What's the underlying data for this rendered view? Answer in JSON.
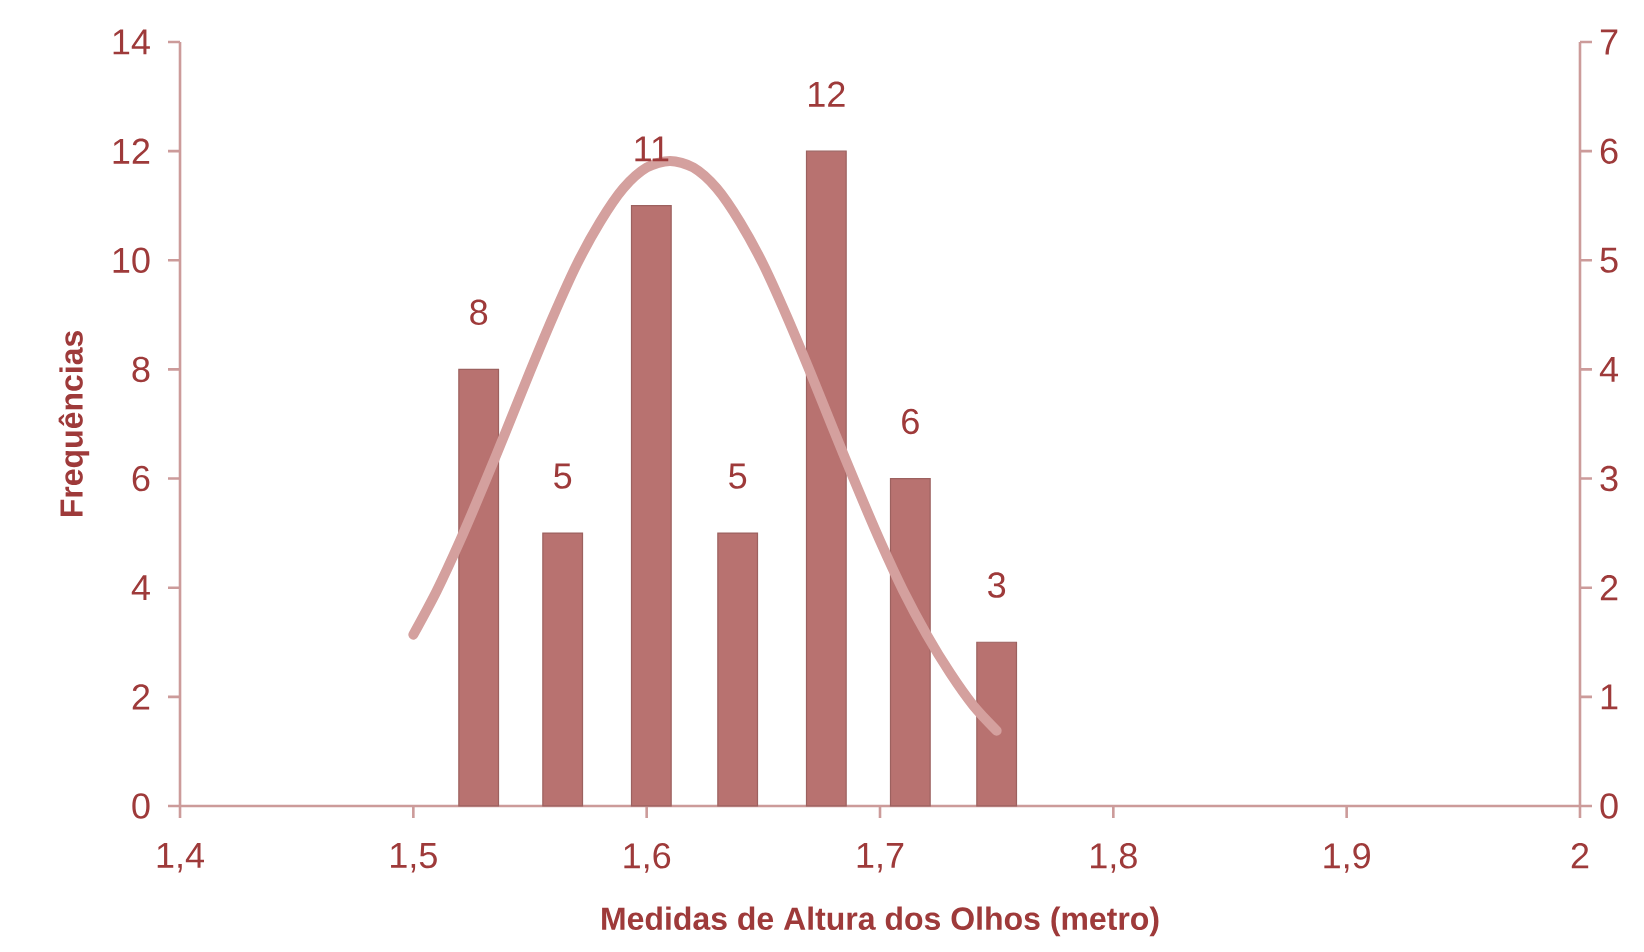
{
  "chart_data": {
    "type": "bar",
    "xlabel": "Medidas de Altura dos Olhos (metro)",
    "ylabel": "Frequências",
    "x": [
      1.528,
      1.564,
      1.602,
      1.639,
      1.677,
      1.713,
      1.75
    ],
    "series": [
      {
        "color": "#b87270",
        "values": [
          8,
          5,
          11,
          5,
          12,
          6,
          3
        ],
        "value_labels": [
          "8",
          "5",
          "11",
          "5",
          "12",
          "6",
          "3"
        ]
      },
      {
        "type": "line",
        "axis": "y2",
        "color": "#d4a09e",
        "x": [
          1.5,
          1.51,
          1.52,
          1.53,
          1.54,
          1.55,
          1.56,
          1.57,
          1.58,
          1.59,
          1.6,
          1.61,
          1.62,
          1.63,
          1.64,
          1.65,
          1.66,
          1.67,
          1.68,
          1.69,
          1.7,
          1.71,
          1.72,
          1.73,
          1.74,
          1.75
        ],
        "values": [
          1.57,
          1.97,
          2.43,
          2.93,
          3.45,
          3.98,
          4.49,
          4.96,
          5.35,
          5.66,
          5.85,
          5.91,
          5.85,
          5.66,
          5.35,
          4.96,
          4.49,
          3.98,
          3.45,
          2.93,
          2.43,
          1.97,
          1.57,
          1.22,
          0.92,
          0.69
        ]
      }
    ],
    "xlim": [
      1.4,
      2
    ],
    "xticks": [
      {
        "value": 1.4,
        "label": "1,4"
      },
      {
        "value": 1.5,
        "label": "1,5"
      },
      {
        "value": 1.6,
        "label": "1,6"
      },
      {
        "value": 1.7,
        "label": "1,7"
      },
      {
        "value": 1.8,
        "label": "1,8"
      },
      {
        "value": 1.9,
        "label": "1,9"
      },
      2
    ],
    "ylim": [
      0,
      14
    ],
    "yticks": [
      0,
      2,
      4,
      6,
      8,
      10,
      12,
      14
    ],
    "y2lim": [
      0,
      7
    ],
    "y2ticks": [
      0,
      1,
      2,
      3,
      4,
      5,
      6,
      7
    ]
  }
}
